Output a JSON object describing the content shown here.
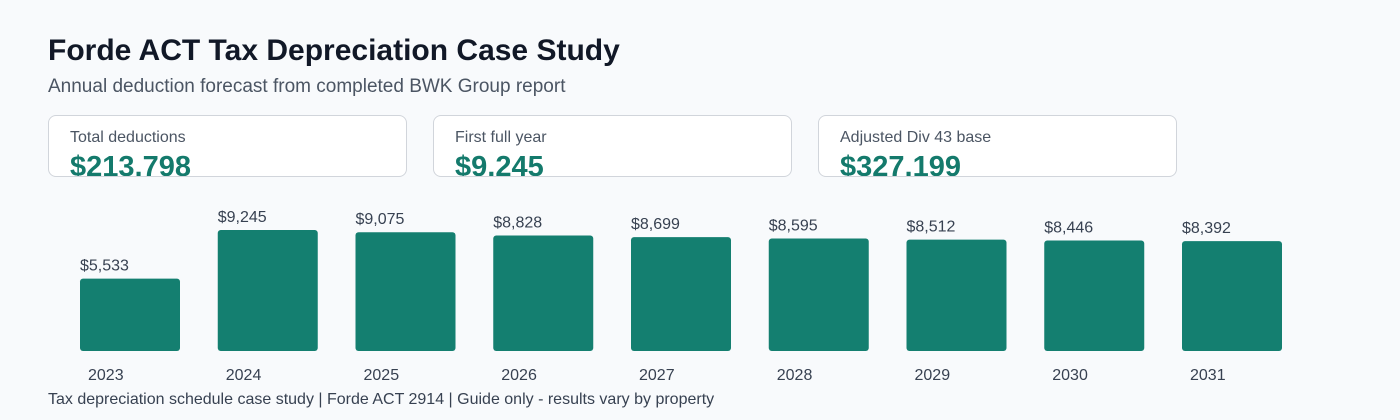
{
  "header": {
    "title": "Forde ACT Tax Depreciation Case Study",
    "subtitle": "Annual deduction forecast from completed BWK Group report"
  },
  "kpis": [
    {
      "label": "Total deductions",
      "value": "$213,798"
    },
    {
      "label": "First full year",
      "value": "$9,245"
    },
    {
      "label": "Adjusted Div 43 base",
      "value": "$327,199"
    }
  ],
  "colors": {
    "bar": "#147f70",
    "accent": "#147a6c",
    "value_label": "#374151",
    "tick_label": "#374151"
  },
  "chart_data": {
    "type": "bar",
    "categories": [
      "2023",
      "2024",
      "2025",
      "2026",
      "2027",
      "2028",
      "2029",
      "2030",
      "2031"
    ],
    "values": [
      5533,
      9245,
      9075,
      8828,
      8699,
      8595,
      8512,
      8446,
      8392
    ],
    "value_labels": [
      "$5,533",
      "$9,245",
      "$9,075",
      "$8,828",
      "$8,699",
      "$8,595",
      "$8,512",
      "$8,446",
      "$8,392"
    ],
    "title": "",
    "xlabel": "",
    "ylabel": "",
    "grid": false,
    "legend": "none"
  },
  "footer": {
    "text": "Tax depreciation schedule case study | Forde ACT 2914 | Guide only - results vary by property"
  }
}
